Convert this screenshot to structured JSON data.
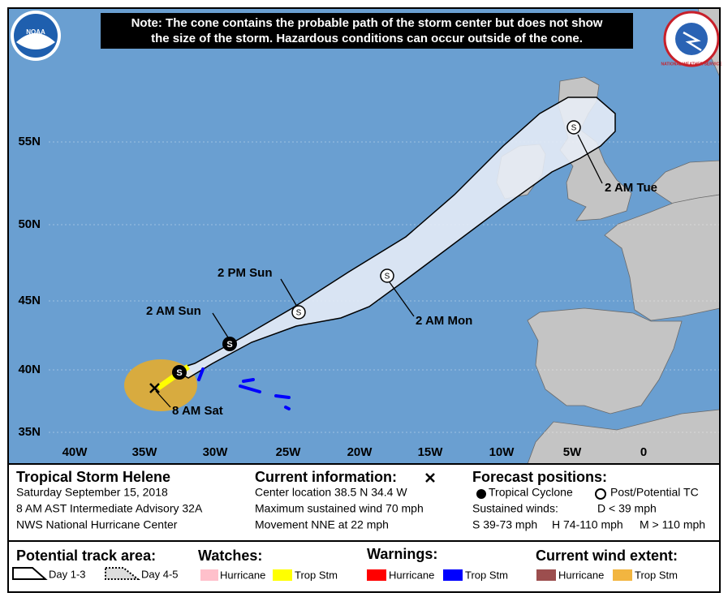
{
  "note": [
    "Note: The cone contains the probable path of the storm center but does not show",
    "the size of the storm. Hazardous conditions can occur outside of the cone."
  ],
  "logos": {
    "noaa": "NOAA",
    "nws": "NATIONAL WEATHER SERVICE"
  },
  "map": {
    "lat_labels": [
      "55N",
      "50N",
      "45N",
      "40N",
      "35N"
    ],
    "lon_labels": [
      "40W",
      "35W",
      "30W",
      "25W",
      "20W",
      "15W",
      "10W",
      "5W",
      "0"
    ],
    "storm_symbol": "S",
    "point_labels": [
      "2 AM Tue",
      "2 PM Sun",
      "2 AM Sun",
      "2 AM Mon",
      "8 AM Sat"
    ]
  },
  "info": {
    "storm_name": "Tropical Storm Helene",
    "date": "Saturday September 15, 2018",
    "advisory": "8 AM AST Intermediate Advisory 32A",
    "center": "NWS National Hurricane Center"
  },
  "current": {
    "title": "Current information:",
    "center_location": "Center location 38.5 N 34.4 W",
    "max_wind": "Maximum sustained wind 70 mph",
    "movement": "Movement NNE at 22 mph"
  },
  "forecast": {
    "title": "Forecast positions:",
    "tropical_cyclone": "Tropical Cyclone",
    "post_tc": "Post/Potential TC",
    "sustained_winds": "Sustained winds:",
    "d": "D < 39 mph",
    "s": "S 39-73 mph",
    "h": "H 74-110 mph",
    "m": "M > 110 mph"
  },
  "legend": {
    "track_title": "Potential track area:",
    "day13": "Day 1-3",
    "day45": "Day 4-5",
    "watches_title": "Watches:",
    "watch_hurricane": "Hurricane",
    "watch_trop": "Trop Stm",
    "warnings_title": "Warnings:",
    "warning_hurricane": "Hurricane",
    "warning_trop": "Trop Stm",
    "wind_title": "Current wind extent:",
    "wind_hurricane": "Hurricane",
    "wind_trop": "Trop Stm"
  }
}
